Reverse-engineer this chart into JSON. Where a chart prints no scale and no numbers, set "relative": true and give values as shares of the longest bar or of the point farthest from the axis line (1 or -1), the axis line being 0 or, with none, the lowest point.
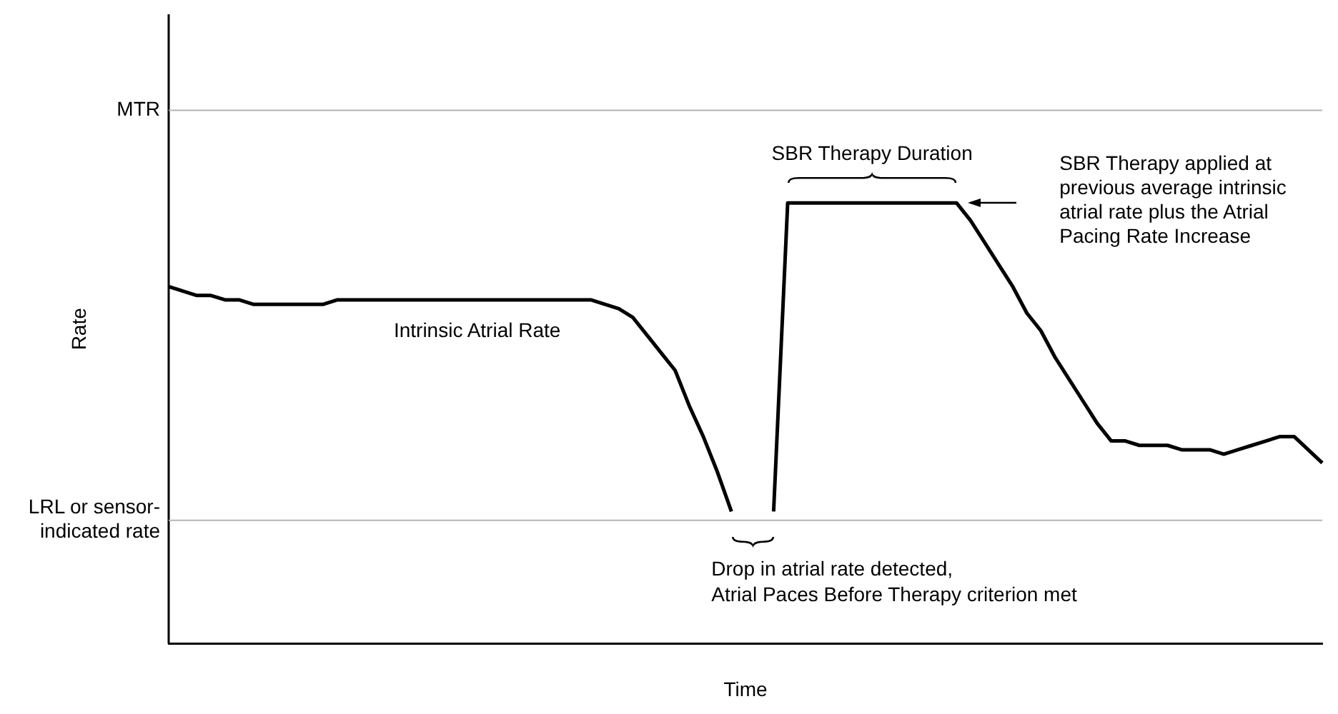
{
  "chart_data": {
    "type": "line",
    "relative": true,
    "xlabel": "Time",
    "ylabel": "Rate",
    "grid": false,
    "legend": false,
    "marker": "none",
    "line_style": "solid",
    "categories": [
      null,
      null,
      null,
      null,
      null,
      null,
      null,
      null,
      null,
      null,
      null,
      null,
      null,
      null,
      null,
      null,
      null,
      null,
      null,
      null,
      null,
      null,
      null,
      null,
      null,
      null,
      null,
      null,
      null,
      null,
      null,
      null,
      null,
      null,
      null,
      null,
      null,
      null,
      null,
      null,
      null,
      null,
      null,
      null,
      null,
      null,
      null,
      null,
      null,
      null,
      null,
      null,
      null,
      null,
      null,
      null,
      null,
      null,
      null,
      null,
      null,
      null,
      null,
      null,
      null,
      null,
      null,
      null,
      null,
      null,
      null,
      null,
      null,
      null,
      null,
      null,
      null,
      null,
      null,
      null,
      null,
      null,
      null
    ],
    "series": [
      {
        "name": "Intrinsic Atrial Rate",
        "color": "#000000",
        "values": [
          0.81,
          0.8,
          0.79,
          0.79,
          0.78,
          0.78,
          0.77,
          0.77,
          0.77,
          0.77,
          0.77,
          0.77,
          0.78,
          0.78,
          0.78,
          0.78,
          0.78,
          0.78,
          0.78,
          0.78,
          0.78,
          0.78,
          0.78,
          0.78,
          0.78,
          0.78,
          0.78,
          0.78,
          0.78,
          0.78,
          0.78,
          0.77,
          0.76,
          0.74,
          0.7,
          0.66,
          0.62,
          0.54,
          0.47,
          0.39,
          0.3,
          null,
          null,
          0.3,
          1,
          1,
          1,
          1,
          1,
          1,
          1,
          1,
          1,
          1,
          1,
          1,
          1,
          0.96,
          0.91,
          0.86,
          0.81,
          0.75,
          0.71,
          0.65,
          0.6,
          0.55,
          0.5,
          0.46,
          0.46,
          0.45,
          0.45,
          0.45,
          0.44,
          0.44,
          0.44,
          0.43,
          0.44,
          0.45,
          0.46,
          0.47,
          0.47,
          0.44,
          0.41
        ]
      }
    ],
    "ref_lines": [
      {
        "axis": "y",
        "value": 1.21,
        "label": "MTR",
        "color": "#b4b4b4"
      },
      {
        "axis": "y",
        "value": 0.28,
        "label": "LRL or sensor-indicated rate",
        "color": "#b4b4b4"
      }
    ],
    "annotations": [
      "SBR Therapy Duration",
      "SBR Therapy applied at previous average intrinsic atrial rate plus the Atrial Pacing Rate Increase",
      "Drop in atrial rate detected,\nAtrial Paces Before Therapy criterion met"
    ]
  }
}
